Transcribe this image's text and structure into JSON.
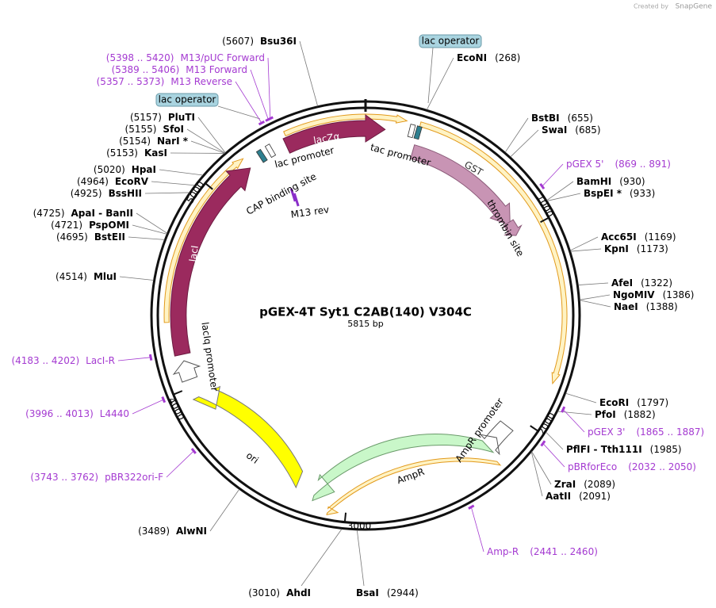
{
  "header": {
    "credit": "Created by",
    "brand": "SnapGene"
  },
  "plasmid": {
    "name": "pGEX-4T Syt1 C2AB(140) V304C",
    "length": "5815 bp"
  },
  "sites": [
    {
      "name": "Bsu36I",
      "position": "(5607)"
    },
    {
      "name": "EcoNI",
      "position": "(268)"
    },
    {
      "name": "BstBI",
      "position": "(655)"
    },
    {
      "name": "SwaI",
      "position": "(685)"
    },
    {
      "name": "BamHI",
      "position": "(930)"
    },
    {
      "name": "BspEI *",
      "position": "(933)"
    },
    {
      "name": "Acc65I",
      "position": "(1169)"
    },
    {
      "name": "KpnI",
      "position": "(1173)"
    },
    {
      "name": "AfeI",
      "position": "(1322)"
    },
    {
      "name": "NgoMIV",
      "position": "(1386)"
    },
    {
      "name": "NaeI",
      "position": "(1388)"
    },
    {
      "name": "EcoRI",
      "position": "(1797)"
    },
    {
      "name": "PfoI",
      "position": "(1882)"
    },
    {
      "name": "PflFI  -  Tth111I",
      "position": "(1985)"
    },
    {
      "name": "ZraI",
      "position": "(2089)"
    },
    {
      "name": "AatII",
      "position": "(2091)"
    },
    {
      "name": "BsaI",
      "position": "(2944)"
    },
    {
      "name": "AhdI",
      "position": "(3010)"
    },
    {
      "name": "AlwNI",
      "position": "(3489)"
    },
    {
      "name": "MluI",
      "position": "(4514)"
    },
    {
      "name": "BstEII",
      "position": "(4695)"
    },
    {
      "name": "PspOMI",
      "position": "(4721)"
    },
    {
      "name": "ApaI  -  BanII",
      "position": "(4725)"
    },
    {
      "name": "BssHII",
      "position": "(4925)"
    },
    {
      "name": "EcoRV",
      "position": "(4964)"
    },
    {
      "name": "HpaI",
      "position": "(5020)"
    },
    {
      "name": "KasI",
      "position": "(5153)"
    },
    {
      "name": "NarI *",
      "position": "(5154)"
    },
    {
      "name": "SfoI",
      "position": "(5155)"
    },
    {
      "name": "PluTI",
      "position": "(5157)"
    }
  ],
  "primers": [
    {
      "name": "M13/pUC Forward",
      "range": "(5398 .. 5420)"
    },
    {
      "name": "M13 Forward",
      "range": "(5389 .. 5406)"
    },
    {
      "name": "M13 Reverse",
      "range": "(5357 .. 5373)"
    },
    {
      "name": "pGEX 5'",
      "range": "(869 .. 891)"
    },
    {
      "name": "pGEX 3'",
      "range": "(1865 .. 1887)"
    },
    {
      "name": "pBRforEco",
      "range": "(2032 .. 2050)"
    },
    {
      "name": "Amp-R",
      "range": "(2441 .. 2460)"
    },
    {
      "name": "pBR322ori-F",
      "range": "(3743 .. 3762)"
    },
    {
      "name": "L4440",
      "range": "(3996 .. 4013)"
    },
    {
      "name": "LacI-R",
      "range": "(4183 .. 4202)"
    }
  ],
  "features": [
    {
      "label": "lacZα"
    },
    {
      "label": "lac promoter"
    },
    {
      "label": "CAP binding site"
    },
    {
      "label": "M13 rev"
    },
    {
      "label": "tac promoter"
    },
    {
      "label": "GST"
    },
    {
      "label": "thrombin site"
    },
    {
      "label": "lacI"
    },
    {
      "label": "lacIq promoter"
    },
    {
      "label": "ori"
    },
    {
      "label": "AmpR"
    },
    {
      "label": "AmpR promoter"
    }
  ],
  "operators": [
    "lac operator",
    "lac operator"
  ],
  "ticks": [
    "1000",
    "2000",
    "3000",
    "4000",
    "5000"
  ]
}
